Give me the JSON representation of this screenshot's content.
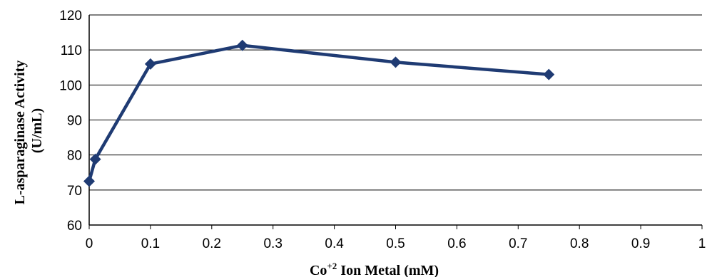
{
  "chart_data": {
    "type": "line",
    "xlabel_main": "Co",
    "xlabel_sup": "+2",
    "xlabel_rest": " Ion Metal  (mM)",
    "ylabel_line1": "L-asparaginase Activity",
    "ylabel_line2": "(U/mL)",
    "xlim": [
      0,
      1
    ],
    "ylim": [
      60,
      120
    ],
    "x_ticks": [
      "0",
      "0.1",
      "0.2",
      "0.3",
      "0.4",
      "0.5",
      "0.6",
      "0.7",
      "0.8",
      "0.9",
      "1"
    ],
    "y_ticks": [
      "60",
      "70",
      "80",
      "90",
      "100",
      "110",
      "120"
    ],
    "grid": "horizontal",
    "series": [
      {
        "color": "#1f3b73",
        "x": [
          0,
          0.01,
          0.1,
          0.25,
          0.5,
          0.75
        ],
        "y": [
          72.5,
          78.8,
          106,
          111.3,
          106.5,
          103
        ]
      }
    ]
  }
}
